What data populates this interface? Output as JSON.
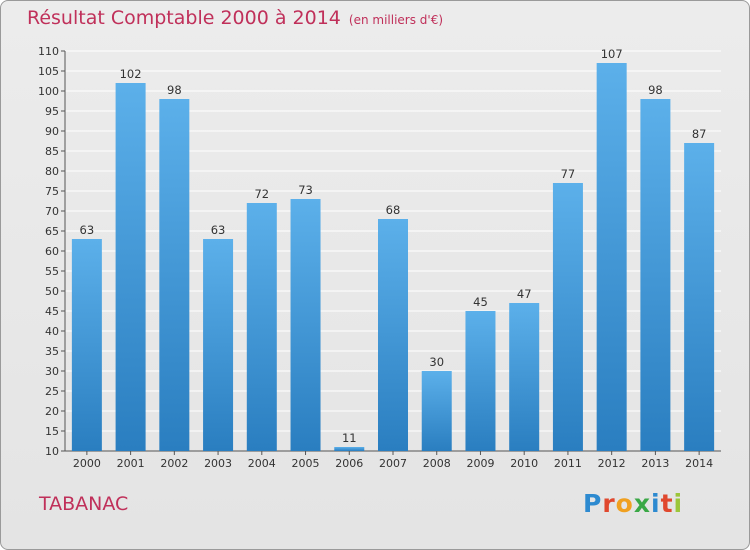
{
  "header": {
    "title": "Résultat Comptable 2000 à 2014",
    "subtitle": "(en milliers d'€)"
  },
  "footer": {
    "commune": "TABANAC",
    "logo_text": "Proxiti",
    "logo_colors": [
      "#2d8ad0",
      "#e0482e",
      "#f0a020",
      "#3aa846",
      "#2d8ad0",
      "#e0482e",
      "#9cc63a"
    ]
  },
  "colors": {
    "bar_light": "#5cb0ea",
    "bar_dark": "#2a7ec0",
    "title": "#c0305a"
  },
  "chart_data": {
    "type": "bar",
    "title": "Résultat Comptable 2000 à 2014",
    "subtitle": "(en milliers d'€)",
    "categories": [
      "2000",
      "2001",
      "2002",
      "2003",
      "2004",
      "2005",
      "2006",
      "2007",
      "2008",
      "2009",
      "2010",
      "2011",
      "2012",
      "2013",
      "2014"
    ],
    "values": [
      63,
      102,
      98,
      63,
      72,
      73,
      11,
      68,
      30,
      45,
      47,
      77,
      107,
      98,
      87
    ],
    "ylim": [
      10,
      110
    ],
    "yticks": [
      10,
      15,
      20,
      25,
      30,
      35,
      40,
      45,
      50,
      55,
      60,
      65,
      70,
      75,
      80,
      85,
      90,
      95,
      100,
      105,
      110
    ],
    "grid": true
  }
}
